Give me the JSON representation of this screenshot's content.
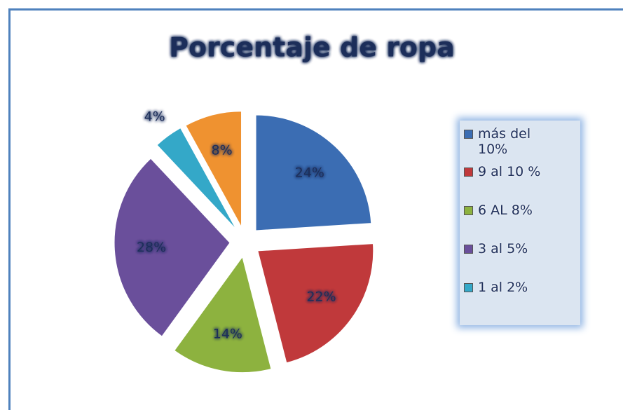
{
  "chart_data": {
    "type": "pie",
    "title": "Porcentaje de ropa",
    "categories": [
      "más del 10%",
      "9 al 10 %",
      "6 AL 8%",
      "3 al 5%",
      "1 al 2%",
      null
    ],
    "values": [
      24,
      22,
      14,
      28,
      4,
      8
    ],
    "value_labels": [
      "24%",
      "22%",
      "14%",
      "28%",
      "4%",
      "8%"
    ],
    "colors": [
      "#3b6db3",
      "#c0393b",
      "#8db23f",
      "#6a4f9b",
      "#34a8c8",
      "#ef9230"
    ],
    "legend": "right"
  }
}
